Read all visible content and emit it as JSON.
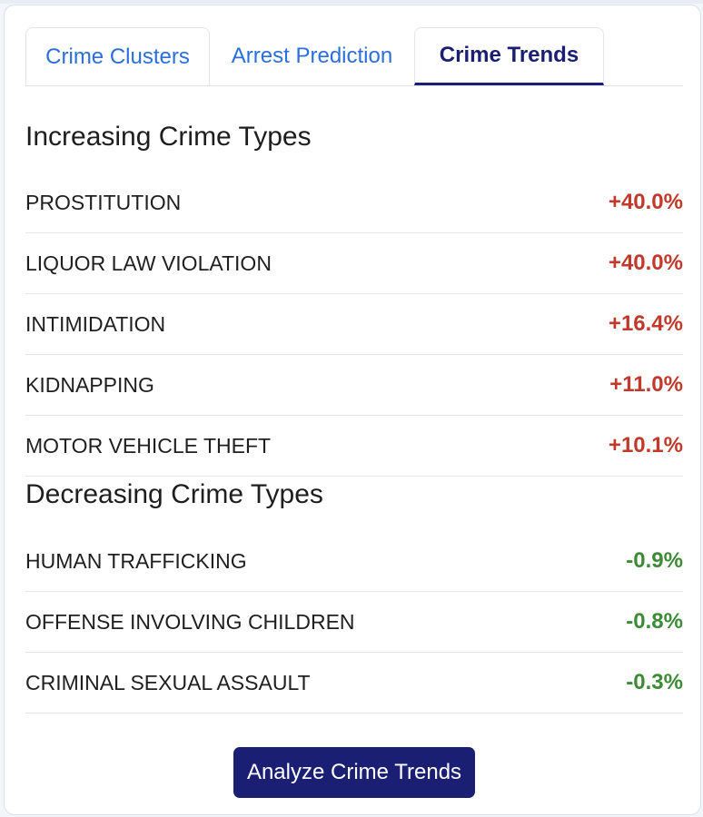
{
  "tabs": [
    {
      "label": "Crime Clusters",
      "active": false
    },
    {
      "label": "Arrest Prediction",
      "active": false
    },
    {
      "label": "Crime Trends",
      "active": true
    }
  ],
  "increasing": {
    "title": "Increasing Crime Types",
    "items": [
      {
        "name": "PROSTITUTION",
        "change": "+40.0%"
      },
      {
        "name": "LIQUOR LAW VIOLATION",
        "change": "+40.0%"
      },
      {
        "name": "INTIMIDATION",
        "change": "+16.4%"
      },
      {
        "name": "KIDNAPPING",
        "change": "+11.0%"
      },
      {
        "name": "MOTOR VEHICLE THEFT",
        "change": "+10.1%"
      }
    ]
  },
  "decreasing": {
    "title": "Decreasing Crime Types",
    "items": [
      {
        "name": "HUMAN TRAFFICKING",
        "change": "-0.9%"
      },
      {
        "name": "OFFENSE INVOLVING CHILDREN",
        "change": "-0.8%"
      },
      {
        "name": "CRIMINAL SEXUAL ASSAULT",
        "change": "-0.3%"
      }
    ]
  },
  "action_button": "Analyze Crime Trends",
  "colors": {
    "accent": "#1b1f73",
    "tab_link": "#2a6fdb",
    "increase": "#c0392b",
    "decrease": "#3d8b37"
  }
}
